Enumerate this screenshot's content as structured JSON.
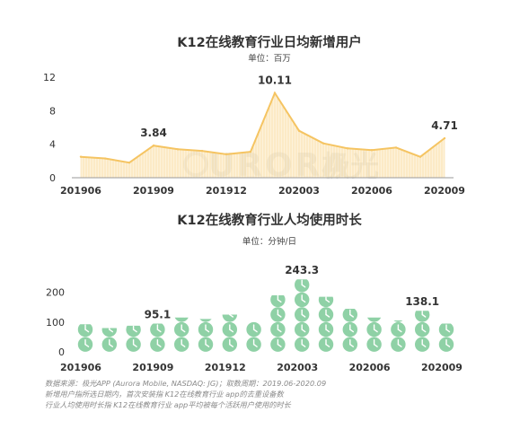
{
  "watermark": {
    "text_left": "URORA",
    "text_right": "极光"
  },
  "chart_data": [
    {
      "type": "area",
      "title": "K12在线教育行业日均新增用户",
      "subtitle": "单位：百万",
      "x": [
        "201906",
        "201907",
        "201908",
        "201909",
        "201910",
        "201911",
        "201912",
        "202001",
        "202002",
        "202003",
        "202004",
        "202005",
        "202006",
        "202007",
        "202008",
        "202009"
      ],
      "values": [
        2.5,
        2.3,
        1.8,
        3.84,
        3.4,
        3.2,
        2.8,
        3.1,
        10.11,
        5.6,
        4.1,
        3.5,
        3.3,
        3.6,
        2.5,
        4.71
      ],
      "data_labels": [
        {
          "index": 3,
          "text": "3.84"
        },
        {
          "index": 8,
          "text": "10.11"
        },
        {
          "index": 15,
          "text": "4.71"
        }
      ],
      "x_tick_labels": [
        "201906",
        "201909",
        "201912",
        "202003",
        "202006",
        "202009"
      ],
      "y_ticks": [
        "0",
        "4",
        "8",
        "12"
      ],
      "ylim": [
        0,
        12
      ],
      "grid": false,
      "colors": {
        "line": "#f5c462",
        "fill": "#fbe3ae"
      }
    },
    {
      "type": "bar",
      "title": "K12在线教育行业人均使用时长",
      "subtitle": "单位：分钟/日",
      "x": [
        "201906",
        "201907",
        "201908",
        "201909",
        "201910",
        "201911",
        "201912",
        "202001",
        "202002",
        "202003",
        "202004",
        "202005",
        "202006",
        "202007",
        "202008",
        "202009"
      ],
      "values": [
        93,
        80,
        88,
        95.1,
        115,
        110,
        125,
        100,
        190,
        243.3,
        185,
        145,
        115,
        105,
        138.1,
        95
      ],
      "data_labels": [
        {
          "index": 3,
          "text": "95.1"
        },
        {
          "index": 9,
          "text": "243.3"
        },
        {
          "index": 14,
          "text": "138.1"
        }
      ],
      "x_tick_labels": [
        "201906",
        "201909",
        "201912",
        "202003",
        "202006",
        "202009"
      ],
      "y_ticks": [
        "0",
        "100",
        "200"
      ],
      "ylim": [
        0,
        250
      ],
      "icon": "clock-icon",
      "icon_unit": 50,
      "grid": false,
      "colors": {
        "icon": "#8fd1a6",
        "hand": "#ffffff"
      }
    }
  ],
  "footer": {
    "line1": "数据来源：极光APP (Aurora Mobile, NASDAQ: JG)；取数周期：2019.06-2020.09",
    "line2": "新增用户指所选日期内，首次安装指 K12在线教育行业 app的去重设备数",
    "line3": "行业人均使用时长指 K12在线教育行业 app平均被每个活跃用户使用的时长"
  }
}
